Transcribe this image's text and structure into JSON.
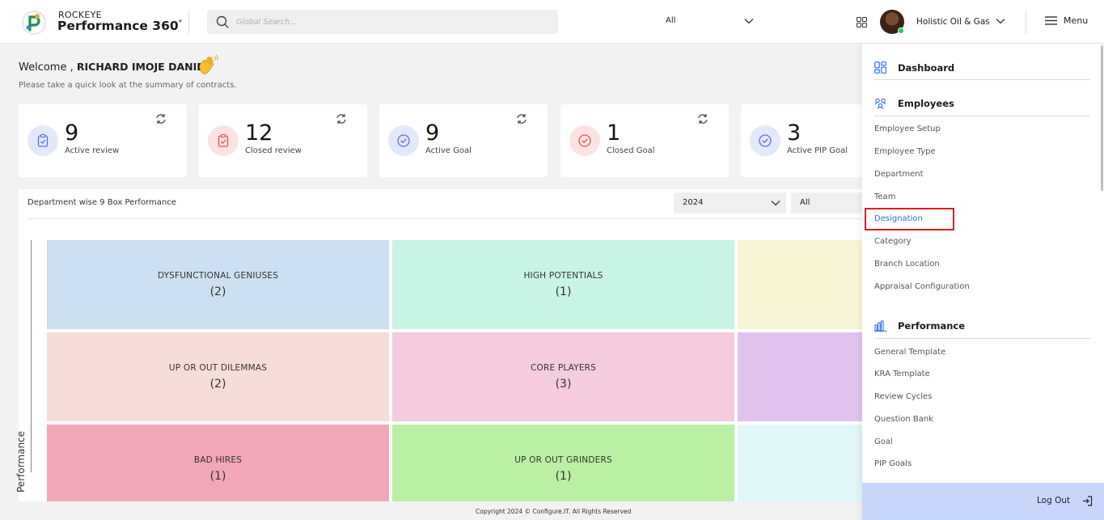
{
  "header": {
    "brand_top": "ROCKEYE",
    "brand_name": "Performance 360",
    "brand_sup": "°",
    "search_placeholder": "Global Search...",
    "search_scope": "All",
    "company": "Holistic Oil & Gas",
    "menu_label": "Menu"
  },
  "welcome": {
    "prefix": "Welcome , ",
    "name": "RICHARD IMOJE DANIEL",
    "subtitle": "Please take a quick look at the summary of contracts."
  },
  "cards": [
    {
      "value": "9",
      "label": "Active review",
      "icon": "clipboard-check-icon",
      "color": "#5b6ee1"
    },
    {
      "value": "12",
      "label": "Closed review",
      "icon": "clipboard-check-icon",
      "color": "#e05555"
    },
    {
      "value": "9",
      "label": "Active Goal",
      "icon": "check-circle-icon",
      "color": "#5b6ee1"
    },
    {
      "value": "1",
      "label": "Closed Goal",
      "icon": "check-circle-icon",
      "color": "#e05555"
    },
    {
      "value": "3",
      "label": "Active PIP Goal",
      "icon": "check-circle-icon",
      "color": "#5b6ee1"
    }
  ],
  "nine_box": {
    "title": "Department wise 9 Box Performance",
    "year": "2024",
    "department": "All",
    "axis_label": "Performance",
    "boxes": [
      {
        "name": "DYSFUNCTIONAL GENIUSES",
        "count": "(2)",
        "color": "#cde0f2"
      },
      {
        "name": "HIGH POTENTIALS",
        "count": "(1)",
        "color": "#c8f5e5"
      },
      {
        "name": "",
        "count": "",
        "color": "#f8f5d4"
      },
      {
        "name": "UP OR OUT DILEMMAS",
        "count": "(2)",
        "color": "#f7ddd7"
      },
      {
        "name": "CORE PLAYERS",
        "count": "(3)",
        "color": "#f4cbdf"
      },
      {
        "name": "",
        "count": "",
        "color": "#e0c2ef"
      },
      {
        "name": "BAD HIRES",
        "count": "(1)",
        "color": "#f2a6b6"
      },
      {
        "name": "UP OR OUT GRINDERS",
        "count": "(1)",
        "color": "#b9f0a4"
      },
      {
        "name": "",
        "count": "",
        "color": "#e1f6f9"
      }
    ]
  },
  "footer": {
    "text": "Copyright 2024 © Configure.IT. All Rights Reserved"
  },
  "side_menu": {
    "dashboard": "Dashboard",
    "employees": "Employees",
    "employee_items": [
      "Employee Setup",
      "Employee Type",
      "Department",
      "Team",
      "Designation",
      "Category",
      "Branch Location",
      "Appraisal Configuration"
    ],
    "performance": "Performance",
    "performance_items": [
      "General Template",
      "KRA Template",
      "Review Cycles",
      "Question Bank",
      "Goal",
      "PIP Goals"
    ],
    "logout": "Log Out"
  }
}
